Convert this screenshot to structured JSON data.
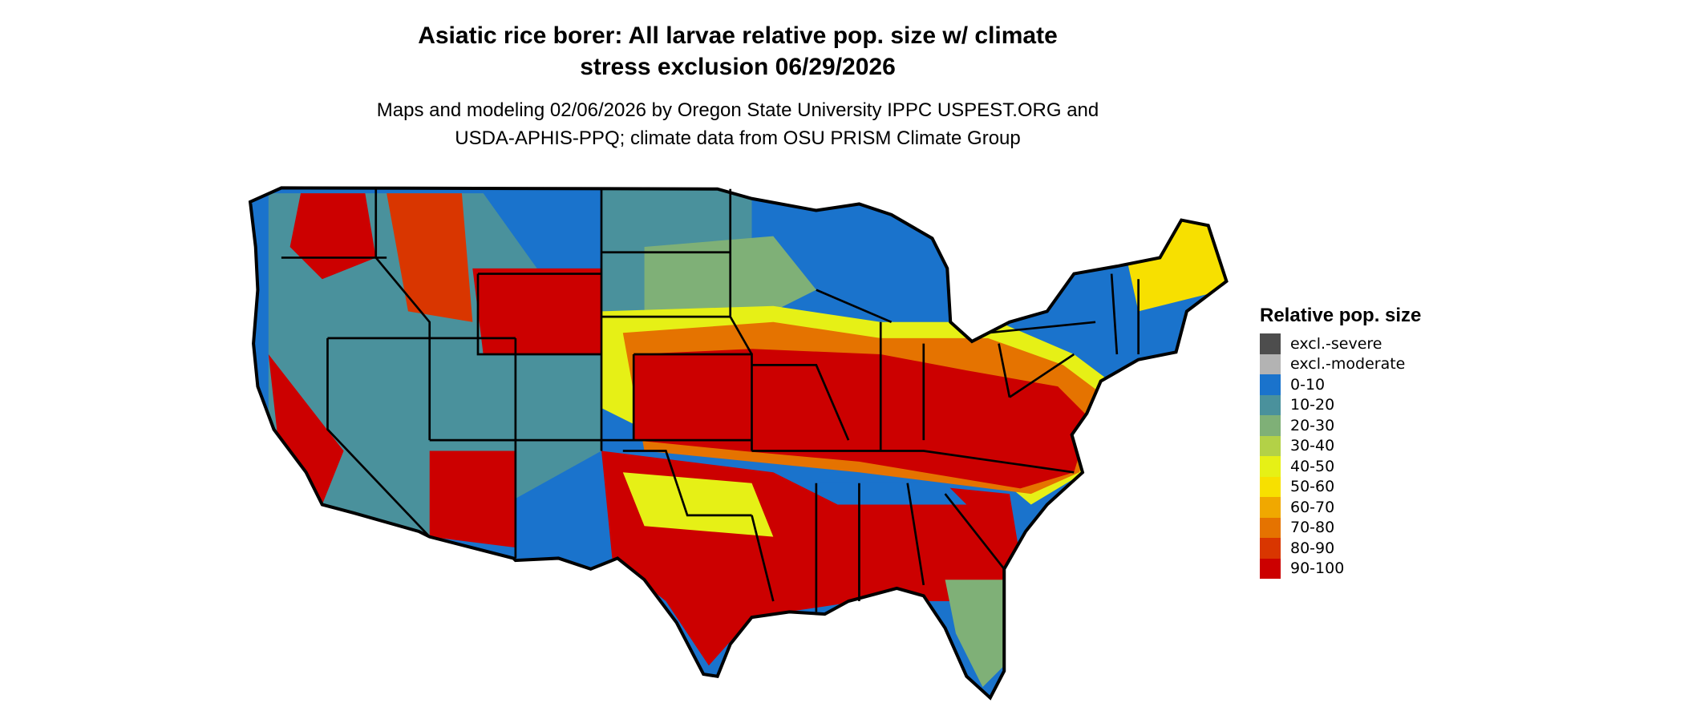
{
  "title_line1": "Asiatic rice borer: All larvae relative pop. size w/ climate",
  "title_line2": "stress exclusion 06/29/2026",
  "subtitle_line1": "Maps and modeling 02/06/2026 by Oregon State University IPPC USPEST.ORG and",
  "subtitle_line2": "USDA-APHIS-PPQ; climate data from OSU PRISM Climate Group",
  "legend": {
    "title": "Relative pop. size",
    "items": [
      {
        "label": "excl.-severe",
        "color": "#4d4d4d"
      },
      {
        "label": "excl.-moderate",
        "color": "#b3b3b3"
      },
      {
        "label": "0-10",
        "color": "#1a73cc"
      },
      {
        "label": "10-20",
        "color": "#4a919c"
      },
      {
        "label": "20-30",
        "color": "#7fb077"
      },
      {
        "label": "30-40",
        "color": "#b3d147"
      },
      {
        "label": "40-50",
        "color": "#e6f016"
      },
      {
        "label": "50-60",
        "color": "#f7e000"
      },
      {
        "label": "60-70",
        "color": "#f0a800"
      },
      {
        "label": "70-80",
        "color": "#e57300"
      },
      {
        "label": "80-90",
        "color": "#d93600"
      },
      {
        "label": "90-100",
        "color": "#cc0000"
      }
    ]
  },
  "chart_data": {
    "type": "heatmap",
    "region": "Contiguous United States",
    "value_name": "Relative pop. size",
    "classes": [
      "excl.-severe",
      "excl.-moderate",
      "0-10",
      "10-20",
      "20-30",
      "30-40",
      "40-50",
      "50-60",
      "60-70",
      "70-80",
      "80-90",
      "90-100"
    ],
    "state_borders": true
  }
}
